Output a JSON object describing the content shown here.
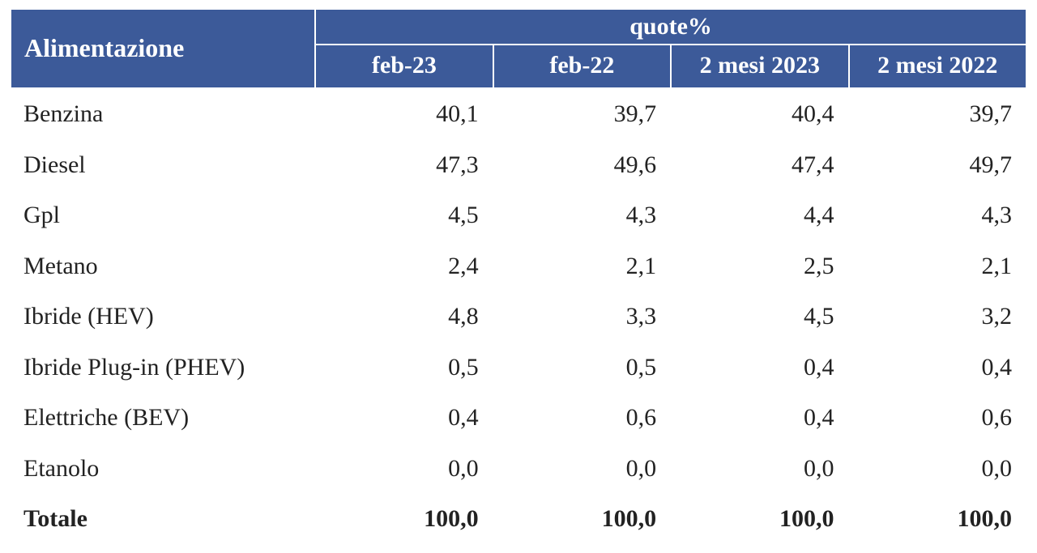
{
  "table": {
    "type": "table",
    "header_bg": "#3c5a99",
    "header_fg": "#ffffff",
    "border_color": "#ffffff",
    "body_text_color": "#222222",
    "font_family": "serif",
    "header_fontsize_pt": 22,
    "body_fontsize_pt": 22,
    "row_header": "Alimentazione",
    "group_header": "quote%",
    "columns": [
      "feb-23",
      "feb-22",
      "2 mesi 2023",
      "2 mesi 2022"
    ],
    "column_widths_pct": [
      30,
      17.5,
      17.5,
      17.5,
      17.5
    ],
    "num_align": "right",
    "label_align": "left",
    "rows": [
      {
        "label": "Benzina",
        "values": [
          "40,1",
          "39,7",
          "40,4",
          "39,7"
        ]
      },
      {
        "label": "Diesel",
        "values": [
          "47,3",
          "49,6",
          "47,4",
          "49,7"
        ]
      },
      {
        "label": "Gpl",
        "values": [
          "4,5",
          "4,3",
          "4,4",
          "4,3"
        ]
      },
      {
        "label": "Metano",
        "values": [
          "2,4",
          "2,1",
          "2,5",
          "2,1"
        ]
      },
      {
        "label": "Ibride (HEV)",
        "values": [
          "4,8",
          "3,3",
          "4,5",
          "3,2"
        ]
      },
      {
        "label": "Ibride Plug-in  (PHEV)",
        "values": [
          "0,5",
          "0,5",
          "0,4",
          "0,4"
        ]
      },
      {
        "label": "Elettriche (BEV)",
        "values": [
          "0,4",
          "0,6",
          "0,4",
          "0,6"
        ]
      },
      {
        "label": "Etanolo",
        "values": [
          "0,0",
          "0,0",
          "0,0",
          "0,0"
        ]
      }
    ],
    "total": {
      "label": "Totale",
      "values": [
        "100,0",
        "100,0",
        "100,0",
        "100,0"
      ]
    }
  }
}
